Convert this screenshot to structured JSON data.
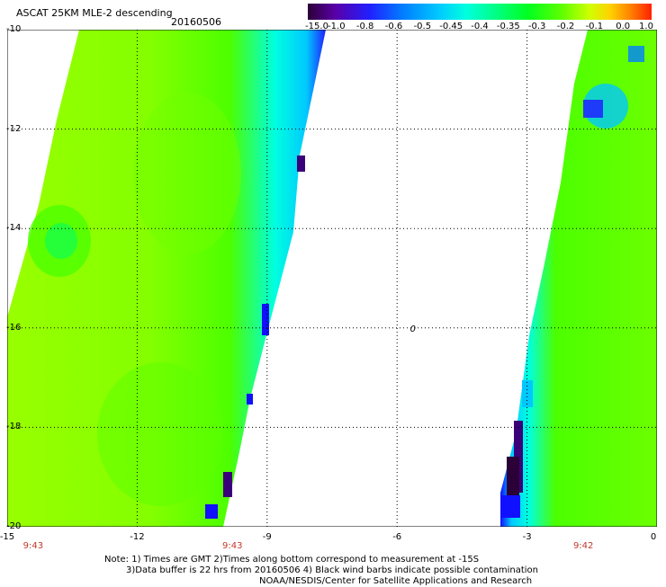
{
  "header": {
    "title": "ASCAT 25KM MLE-2 descending",
    "date": "20160506"
  },
  "colorbar": {
    "labels": [
      "-15.0",
      "-1.0",
      "-0.8",
      "-0.6",
      "-0.5",
      "-0.45",
      "-0.4",
      "-0.35",
      "-0.3",
      "-0.2",
      "-0.1",
      "0.0",
      "1.0"
    ],
    "colors": [
      "#2b0036",
      "#5a00a8",
      "#2020ff",
      "#0080ff",
      "#00c8ff",
      "#00ffe0",
      "#00ff80",
      "#00ff20",
      "#60ff00",
      "#d0ff00",
      "#ffd000",
      "#ff8000",
      "#ff2000"
    ]
  },
  "axes": {
    "lat_labels": [
      "-10",
      "-12",
      "-14",
      "-16",
      "-18",
      "-20"
    ],
    "lon_labels": [
      "-15",
      "-12",
      "-9",
      "-6",
      "-3",
      "0"
    ],
    "lat_range": [
      -20,
      -10
    ],
    "lon_range": [
      -15,
      0
    ],
    "grid": "dotted"
  },
  "swath_times": [
    {
      "lon": -14.4,
      "time": "9:43"
    },
    {
      "lon": -9.8,
      "time": "9:43"
    },
    {
      "lon": -1.7,
      "time": "9:42"
    }
  ],
  "marker": {
    "label": "0",
    "lat": -16,
    "lon": -5.7
  },
  "notes": [
    "Note: 1) Times are GMT 2)Times along bottom correspond to measurement at -15S",
    "3)Data buffer is 22 hrs from 20160506 4) Black wind barbs indicate possible contamination",
    "NOAA/NESDIS/Center for Satellite Applications and Research"
  ],
  "colors": {
    "swath_green": "#84ff00",
    "swath_yellow_green": "#a8ff00",
    "swath_mid_green": "#4cff00",
    "swath_cyan": "#00ffe0",
    "swath_blue": "#1010ff",
    "swath_dark": "#3a007a"
  }
}
